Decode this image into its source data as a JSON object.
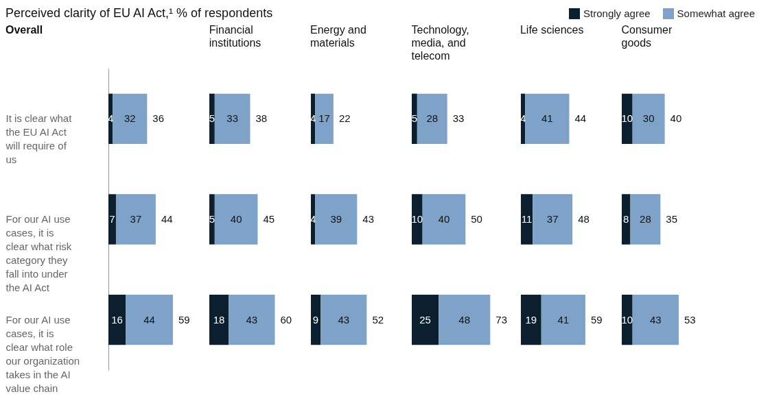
{
  "chart_data": [
    {
      "type": "bar",
      "orientation": "horizontal",
      "stacked": true,
      "title": "Perceived clarity of EU AI Act,¹ % of respondents",
      "subtitle": "Overall",
      "legend": "top right",
      "tick_labels": "y",
      "data_labels": true,
      "categories": [
        "It is clear what the EU AI Act will require of us",
        "For our AI use cases, it is clear what risk category they fall into under the AI Act",
        "For our AI use cases, it is clear what role our organization takes in the AI value chain"
      ],
      "series": [
        {
          "name": "Strongly agree",
          "color": "#0b1f2e",
          "values": [
            4,
            7,
            16
          ]
        },
        {
          "name": "Somewhat agree",
          "color": "#7fa3c8",
          "values": [
            32,
            37,
            44
          ]
        }
      ],
      "totals": [
        "36",
        "44",
        "59"
      ]
    },
    {
      "type": "bar",
      "orientation": "horizontal",
      "stacked": true,
      "title": "Financial institutions",
      "tick_labels": false,
      "data_labels": true,
      "categories": [
        null,
        null,
        null
      ],
      "series": [
        {
          "color": "#0b1f2e",
          "values": [
            5,
            5,
            18
          ]
        },
        {
          "color": "#7fa3c8",
          "values": [
            33,
            40,
            43
          ]
        }
      ],
      "totals": [
        "38",
        "45",
        "60"
      ]
    },
    {
      "type": "bar",
      "orientation": "horizontal",
      "stacked": true,
      "title": "Energy and materials",
      "tick_labels": false,
      "data_labels": true,
      "categories": [
        null,
        null,
        null
      ],
      "series": [
        {
          "color": "#0b1f2e",
          "values": [
            4,
            4,
            9
          ]
        },
        {
          "color": "#7fa3c8",
          "values": [
            17,
            39,
            43
          ]
        }
      ],
      "totals": [
        "22",
        "43",
        "52"
      ]
    },
    {
      "type": "bar",
      "orientation": "horizontal",
      "stacked": true,
      "title": "Technology, media, and telecom",
      "tick_labels": false,
      "data_labels": true,
      "categories": [
        null,
        null,
        null
      ],
      "series": [
        {
          "color": "#0b1f2e",
          "values": [
            5,
            10,
            25
          ]
        },
        {
          "color": "#7fa3c8",
          "values": [
            28,
            40,
            48
          ]
        }
      ],
      "totals": [
        "33",
        "50",
        "73"
      ]
    },
    {
      "type": "bar",
      "orientation": "horizontal",
      "stacked": true,
      "title": "Life sciences",
      "tick_labels": false,
      "data_labels": true,
      "categories": [
        null,
        null,
        null
      ],
      "series": [
        {
          "color": "#0b1f2e",
          "values": [
            4,
            11,
            19
          ]
        },
        {
          "color": "#7fa3c8",
          "values": [
            41,
            37,
            41
          ]
        }
      ],
      "totals": [
        "44",
        "48",
        "59"
      ]
    },
    {
      "type": "bar",
      "orientation": "horizontal",
      "stacked": true,
      "title": "Consumer goods",
      "tick_labels": false,
      "data_labels": true,
      "categories": [
        null,
        null,
        null
      ],
      "series": [
        {
          "color": "#0b1f2e",
          "values": [
            10,
            8,
            10
          ]
        },
        {
          "color": "#7fa3c8",
          "values": [
            30,
            28,
            43
          ]
        }
      ],
      "totals": [
        "40",
        "35",
        "53"
      ]
    }
  ]
}
